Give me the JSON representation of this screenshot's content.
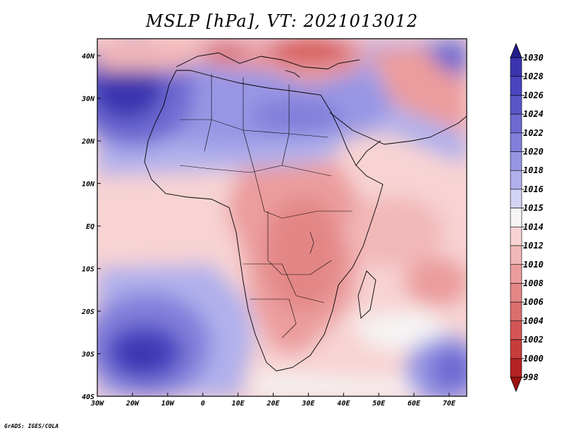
{
  "title": "MSLP [hPa], VT: 2021013012",
  "footer": "GrADS: IGES/COLA",
  "map": {
    "variable": "MSLP",
    "units": "hPa",
    "valid_time": "2021013012",
    "lon_range": [
      -30,
      75
    ],
    "lat_range": [
      -40,
      44
    ],
    "x_ticks": [
      {
        "value": -30,
        "label": "30W"
      },
      {
        "value": -20,
        "label": "20W"
      },
      {
        "value": -10,
        "label": "10W"
      },
      {
        "value": 0,
        "label": "0"
      },
      {
        "value": 10,
        "label": "10E"
      },
      {
        "value": 20,
        "label": "20E"
      },
      {
        "value": 30,
        "label": "30E"
      },
      {
        "value": 40,
        "label": "40E"
      },
      {
        "value": 50,
        "label": "50E"
      },
      {
        "value": 60,
        "label": "60E"
      },
      {
        "value": 70,
        "label": "70E"
      }
    ],
    "y_ticks": [
      {
        "value": 40,
        "label": "40N"
      },
      {
        "value": 30,
        "label": "30N"
      },
      {
        "value": 20,
        "label": "20N"
      },
      {
        "value": 10,
        "label": "10N"
      },
      {
        "value": 0,
        "label": "EQ"
      },
      {
        "value": -10,
        "label": "10S"
      },
      {
        "value": -20,
        "label": "20S"
      },
      {
        "value": -30,
        "label": "30S"
      },
      {
        "value": -40,
        "label": "40S"
      }
    ],
    "features": [
      {
        "name": "north-atlantic-high",
        "lon": -23,
        "lat": 31,
        "kind": "high"
      },
      {
        "name": "south-atlantic-high",
        "lon": -18,
        "lat": -30,
        "kind": "high"
      },
      {
        "name": "saharan-ridge",
        "lon": 15,
        "lat": 26,
        "kind": "high"
      },
      {
        "name": "mediterranean-low",
        "lon": 22,
        "lat": 42,
        "kind": "low"
      },
      {
        "name": "indian-ocean-high",
        "lon": 72,
        "lat": -30,
        "kind": "high"
      },
      {
        "name": "central-africa-trough",
        "lon": 25,
        "lat": -8,
        "kind": "low"
      }
    ]
  },
  "colorbar": {
    "levels": [
      "1030",
      "1028",
      "1026",
      "1024",
      "1022",
      "1020",
      "1018",
      "1016",
      "1015",
      "1014",
      "1012",
      "1010",
      "1008",
      "1006",
      "1004",
      "1002",
      "1000",
      "998"
    ],
    "colors": [
      "#231c8e",
      "#3b34b0",
      "#4a44c0",
      "#5a55c8",
      "#6d69d1",
      "#827fdb",
      "#9896e4",
      "#b1b0ec",
      "#d3d3f4",
      "#f6f4f4",
      "#f7d3d3",
      "#f2b7b7",
      "#eb9c9c",
      "#e38686",
      "#dc6e6e",
      "#d45555",
      "#c83c3c",
      "#b52222",
      "#9d1212"
    ]
  }
}
